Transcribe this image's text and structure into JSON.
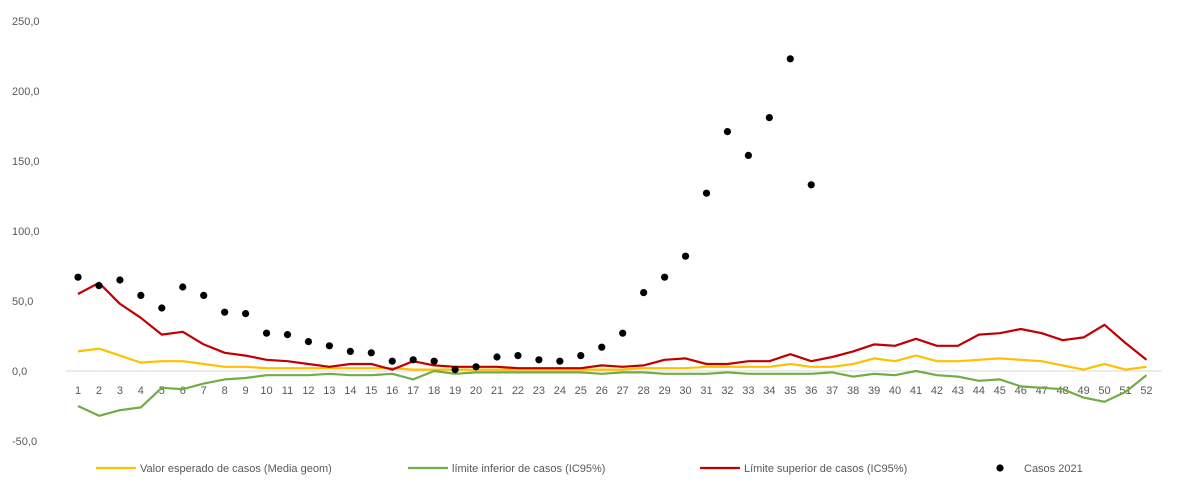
{
  "chart_data": {
    "type": "line",
    "title": "",
    "xlabel": "",
    "ylabel": "",
    "x": [
      1,
      2,
      3,
      4,
      5,
      6,
      7,
      8,
      9,
      10,
      11,
      12,
      13,
      14,
      15,
      16,
      17,
      18,
      19,
      20,
      21,
      22,
      23,
      24,
      25,
      26,
      27,
      28,
      29,
      30,
      31,
      32,
      33,
      34,
      35,
      36,
      37,
      38,
      39,
      40,
      41,
      42,
      43,
      44,
      45,
      46,
      47,
      48,
      49,
      50,
      51,
      52
    ],
    "y_ticks": [
      "250,0",
      "200,0",
      "150,0",
      "100,0",
      "50,0",
      "0,0",
      "-50,0"
    ],
    "y_tick_values": [
      250,
      200,
      150,
      100,
      50,
      0,
      -50
    ],
    "ylim": [
      -60,
      255
    ],
    "grid": false,
    "legend_position": "bottom",
    "series": [
      {
        "name": "Valor esperado de casos (Media geom)",
        "kind": "line",
        "color": "#FFC000",
        "values": [
          14,
          16,
          11,
          6,
          7,
          7,
          5,
          3,
          3,
          2,
          2,
          2,
          2,
          2,
          2,
          2,
          1,
          1,
          1,
          1,
          1,
          1,
          1,
          1,
          1,
          1,
          1,
          2,
          2,
          2,
          3,
          3,
          3,
          3,
          5,
          3,
          3,
          5,
          9,
          7,
          11,
          7,
          7,
          8,
          9,
          8,
          7,
          4,
          1,
          5,
          1,
          3
        ]
      },
      {
        "name": "límite inferior de casos (IC95%)",
        "kind": "line",
        "color": "#70AD47",
        "values": [
          -25,
          -32,
          -28,
          -26,
          -12,
          -13,
          -9,
          -6,
          -5,
          -3,
          -3,
          -3,
          -2,
          -3,
          -3,
          -2,
          -6,
          0,
          -2,
          -1,
          -1,
          -1,
          -1,
          -1,
          -1,
          -2,
          -1,
          -1,
          -2,
          -2,
          -2,
          -1,
          -2,
          -2,
          -2,
          -2,
          -1,
          -4,
          -2,
          -3,
          0,
          -3,
          -4,
          -7,
          -6,
          -11,
          -12,
          -13,
          -19,
          -22,
          -15,
          -3
        ]
      },
      {
        "name": "Límite superior de casos (IC95%)",
        "kind": "line",
        "color": "#C00000",
        "values": [
          55,
          63,
          48,
          38,
          26,
          28,
          19,
          13,
          11,
          8,
          7,
          5,
          3,
          5,
          5,
          1,
          7,
          4,
          3,
          3,
          3,
          2,
          2,
          2,
          2,
          4,
          3,
          4,
          8,
          9,
          5,
          5,
          7,
          7,
          12,
          7,
          10,
          14,
          19,
          18,
          23,
          18,
          18,
          26,
          27,
          30,
          27,
          22,
          24,
          33,
          20,
          8
        ]
      },
      {
        "name": "Casos 2021",
        "kind": "scatter",
        "color": "#000000",
        "values": [
          67,
          61,
          65,
          54,
          45,
          60,
          54,
          42,
          41,
          27,
          26,
          21,
          18,
          14,
          13,
          7,
          8,
          7,
          1,
          3,
          10,
          11,
          8,
          7,
          11,
          17,
          27,
          56,
          67,
          82,
          127,
          171,
          154,
          181,
          223,
          133
        ]
      }
    ]
  }
}
